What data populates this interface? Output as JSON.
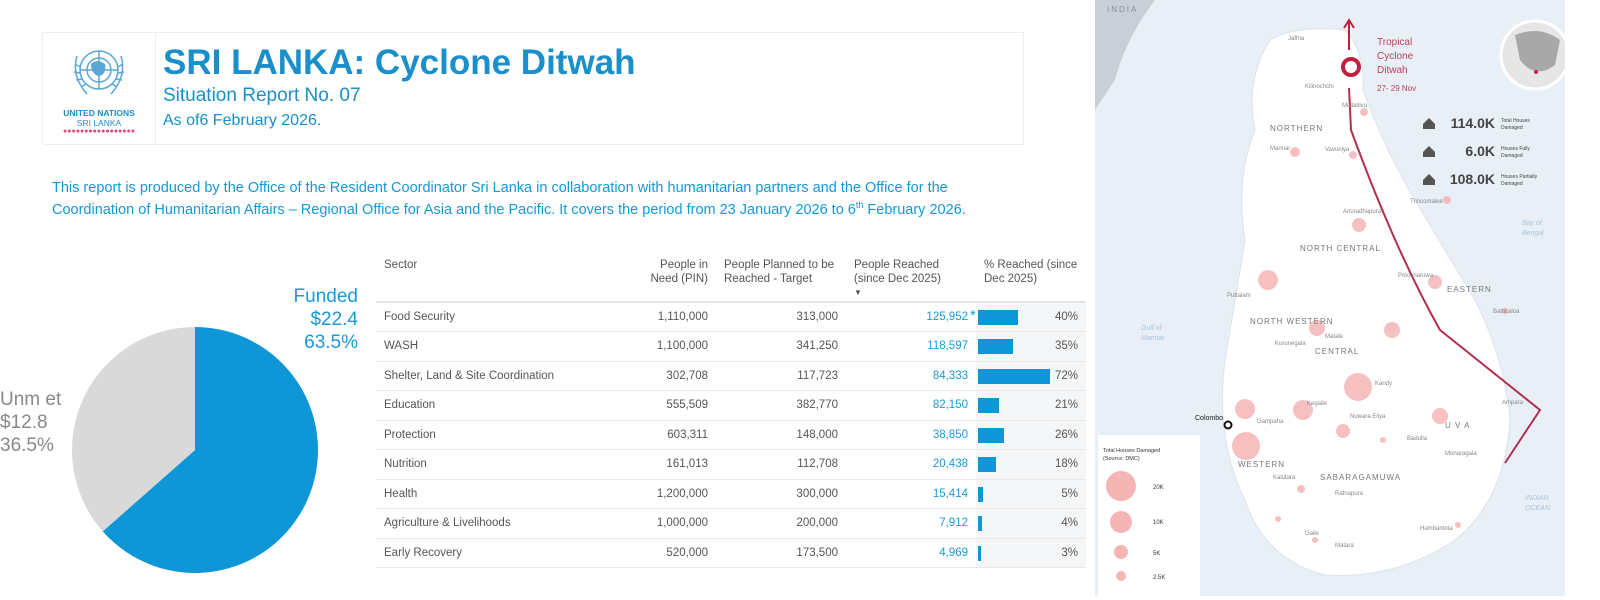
{
  "header": {
    "org_line1": "UNITED NATIONS",
    "org_line2": "SRI LANKA",
    "title": "SRI LANKA: Cyclone Ditwah",
    "subtitle": "Situation Report No. 07",
    "date": "As of6 February 2026."
  },
  "description": {
    "text": "This report is produced by the Office of the Resident Coordinator Sri Lanka in collaboration with humanitarian partners and the Office for the Coordination of Humanitarian Affairs – Regional Office for Asia and the Pacific. It covers the period from 23 January 2026 to 6",
    "sup": "th",
    "tail": " February 2026."
  },
  "chart_data": {
    "type": "pie",
    "slices": [
      {
        "label": "Funded",
        "amount": "$22.4",
        "percent": 63.5,
        "percent_label": "63.5%",
        "color": "#0f96d6"
      },
      {
        "label": "Unm et",
        "amount": "$12.8",
        "percent": 36.5,
        "percent_label": "36.5%",
        "color": "#d9d9d9"
      }
    ]
  },
  "table": {
    "headers": [
      "Sector",
      "People in Need (PIN)",
      "People Planned to be Reached - Target",
      "People Reached (since Dec 2025)",
      "% Reached (since Dec 2025)"
    ],
    "rows": [
      {
        "sector": "Food Security",
        "pin": "1,110,000",
        "target": "313,000",
        "reached": "125,952",
        "star": "*",
        "pct": 40,
        "pct_label": "40%"
      },
      {
        "sector": "WASH",
        "pin": "1,100,000",
        "target": "341,250",
        "reached": "118,597",
        "pct": 35,
        "pct_label": "35%"
      },
      {
        "sector": "Shelter, Land & Site Coordination",
        "pin": "302,708",
        "target": "117,723",
        "reached": "84,333",
        "pct": 72,
        "pct_label": "72%"
      },
      {
        "sector": "Education",
        "pin": "555,509",
        "target": "382,770",
        "reached": "82,150",
        "pct": 21,
        "pct_label": "21%"
      },
      {
        "sector": "Protection",
        "pin": "603,311",
        "target": "148,000",
        "reached": "38,850",
        "pct": 26,
        "pct_label": "26%"
      },
      {
        "sector": "Nutrition",
        "pin": "161,013",
        "target": "112,708",
        "reached": "20,438",
        "pct": 18,
        "pct_label": "18%"
      },
      {
        "sector": "Health",
        "pin": "1,200,000",
        "target": "300,000",
        "reached": "15,414",
        "pct": 5,
        "pct_label": "5%"
      },
      {
        "sector": "Agriculture & Livelihoods",
        "pin": "1,000,000",
        "target": "200,000",
        "reached": "7,912",
        "pct": 4,
        "pct_label": "4%"
      },
      {
        "sector": "Early Recovery",
        "pin": "520,000",
        "target": "173,500",
        "reached": "4,969",
        "pct": 3,
        "pct_label": "3%"
      }
    ]
  },
  "map": {
    "country_label": "INDIA",
    "cyclone": {
      "l1": "Tropical",
      "l2": "Cyclone",
      "l3": "Ditwah",
      "dates": "27- 29 Nov"
    },
    "stats": [
      {
        "value": "114.0K",
        "l1": "Total Houses",
        "l2": "Damaged"
      },
      {
        "value": "6.0K",
        "l1": "Houses Fully",
        "l2": "Damaged"
      },
      {
        "value": "108.0K",
        "l1": "Houses Partially",
        "l2": "Damaged"
      }
    ],
    "provinces": [
      "NORTHERN",
      "NORTH CENTRAL",
      "EASTERN",
      "NORTH WESTERN",
      "CENTRAL",
      "U V A",
      "WESTERN",
      "SABARAGAMUWA"
    ],
    "districts": [
      "Jaffna",
      "Kilinochchi",
      "Mullaitivu",
      "Mannar",
      "Vavuniya",
      "Trincomalee",
      "Anuradhapura",
      "Polonnaruwa",
      "Puttalam",
      "Batticaloa",
      "Kurunegala",
      "Matale",
      "Kandy",
      "Kegalle",
      "Gampaha",
      "Nuwara Eliya",
      "Badulla",
      "Ampara",
      "Monaragala",
      "Kalutara",
      "Ratnapura",
      "Hambantota",
      "Galle",
      "Matara"
    ],
    "capital": "Colombo",
    "seas": {
      "gulf1": "Gulf of",
      "gulf2": "Mannar",
      "bay1": "Bay of",
      "bay2": "Bengal",
      "ocean1": "INDIAN",
      "ocean2": "OCEAN"
    },
    "legend": {
      "title": "Total Houses Damaged",
      "source": "(Source: DMC)",
      "sizes": [
        "20K",
        "10K",
        "5K",
        "2.5K"
      ]
    }
  }
}
